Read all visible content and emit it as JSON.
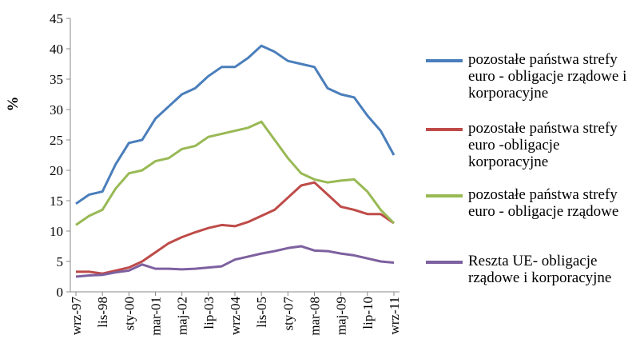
{
  "chart_data": {
    "type": "line",
    "y_label": "%",
    "categories": [
      "wrz-97",
      null,
      "lis-98",
      null,
      "sty-00",
      null,
      "mar-01",
      null,
      "maj-02",
      null,
      "lip-03",
      null,
      "wrz-04",
      null,
      "lis-05",
      null,
      "sty-07",
      null,
      "mar-08",
      null,
      "maj-09",
      null,
      "lip-10",
      null,
      "wrz-11"
    ],
    "series": [
      {
        "name": "pozostałe państwa strefy euro - obligacje rządowe i korporacyjne",
        "color": "#4a7ebb",
        "values": [
          14.5,
          16,
          16.5,
          21,
          24.5,
          25,
          28.5,
          30.5,
          32.5,
          33.5,
          35.5,
          37,
          37,
          38.5,
          40.5,
          39.5,
          38,
          37.5,
          37,
          33.5,
          32.5,
          32,
          29,
          26.5,
          22.5
        ]
      },
      {
        "name": "pozostałe państwa strefy euro -obligacje korporacyjne",
        "color": "#be4b48",
        "values": [
          3.3,
          3.3,
          3,
          3.5,
          4,
          5,
          6.5,
          8,
          9,
          9.8,
          10.5,
          11,
          10.8,
          11.5,
          12.5,
          13.5,
          15.5,
          17.5,
          18,
          16,
          14,
          13.5,
          12.8,
          12.8,
          11.3
        ]
      },
      {
        "name": "pozostałe państwa strefy euro - obligacje rządowe",
        "color": "#98b954",
        "values": [
          11,
          12.5,
          13.5,
          17,
          19.5,
          20,
          21.5,
          22,
          23.5,
          24,
          25.5,
          26,
          26.5,
          27,
          28,
          25,
          22,
          19.5,
          18.5,
          18,
          18.3,
          18.5,
          16.5,
          13.5,
          11.3
        ]
      },
      {
        "name": "Reszta UE- obligacje rządowe i korporacyjne",
        "color": "#7d60a0",
        "values": [
          2.5,
          2.7,
          2.8,
          3.2,
          3.5,
          4.5,
          3.8,
          3.8,
          3.7,
          3.8,
          4,
          4.2,
          5.3,
          5.8,
          6.3,
          6.7,
          7.2,
          7.5,
          6.8,
          6.7,
          6.3,
          6,
          5.5,
          5,
          4.8
        ]
      }
    ],
    "ylim": [
      0,
      45
    ],
    "yticks": [
      0,
      5,
      10,
      15,
      20,
      25,
      30,
      35,
      40,
      45
    ]
  }
}
